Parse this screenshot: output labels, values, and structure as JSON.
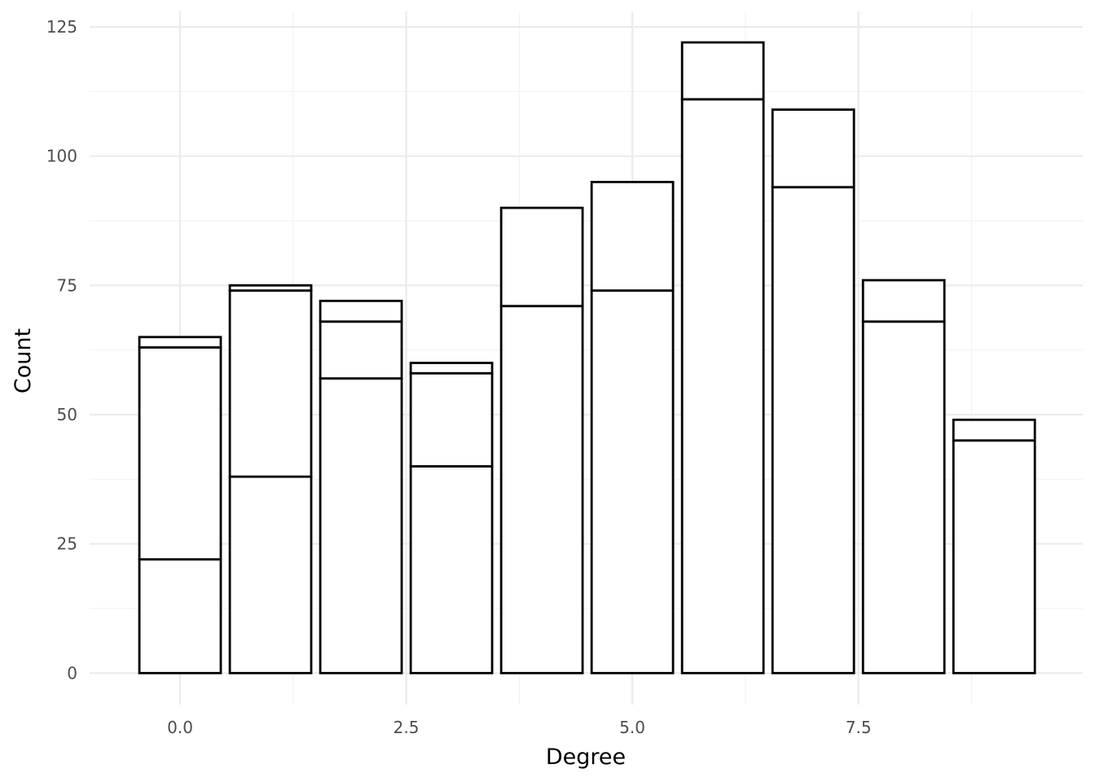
{
  "chart_data": {
    "type": "bar",
    "stacked": true,
    "title": "",
    "xlabel": "Degree",
    "ylabel": "Count",
    "x": [
      0,
      1,
      2,
      3,
      4,
      5,
      6,
      7,
      8,
      9
    ],
    "stack_boundaries": [
      [
        22,
        63,
        65
      ],
      [
        38,
        74,
        75
      ],
      [
        57,
        68,
        72
      ],
      [
        40,
        58,
        60
      ],
      [
        71,
        90
      ],
      [
        74,
        95
      ],
      [
        111,
        122
      ],
      [
        94,
        109
      ],
      [
        68,
        76
      ],
      [
        45,
        49
      ]
    ],
    "totals": [
      65,
      75,
      72,
      60,
      90,
      95,
      122,
      109,
      76,
      49
    ],
    "xlim": [
      -1.0,
      9.98
    ],
    "ylim": [
      -6.1,
      128
    ],
    "x_ticks": [
      0.0,
      2.5,
      5.0,
      7.5
    ],
    "x_tick_labels": [
      "0.0",
      "2.5",
      "5.0",
      "7.5"
    ],
    "y_ticks": [
      0,
      25,
      50,
      75,
      100,
      125
    ],
    "y_tick_labels": [
      "0",
      "25",
      "50",
      "75",
      "100",
      "125"
    ],
    "bar_fill": "#ffffff",
    "bar_outline": "#000000",
    "grid": true,
    "legend": false
  }
}
